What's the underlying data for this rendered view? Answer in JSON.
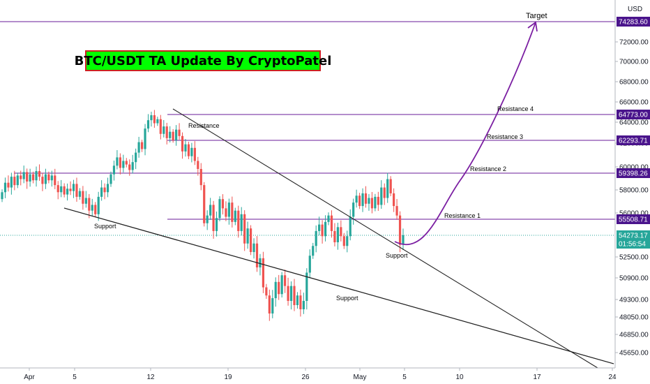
{
  "title": "BTC/USDT TA Update By CryptoPatel",
  "currency_label": "USD",
  "colors": {
    "up": "#26a69a",
    "down": "#ef5350",
    "level_line": "#6a1b9a",
    "level_tag": "#4a148c",
    "current_tag": "#26a69a",
    "trend_line": "#222222",
    "title_bg": "#00ff00",
    "title_border": "#cc2222"
  },
  "chart_data": {
    "type": "candlestick",
    "x_ticks": [
      "Apr",
      "5",
      "12",
      "19",
      "26",
      "May",
      "5",
      "10",
      "17",
      "24"
    ],
    "y_ticks": [
      "72000.00",
      "70000.00",
      "68000.00",
      "66000.00",
      "64000.00",
      "62000.00",
      "60000.00",
      "58000.00",
      "56000.00",
      "52500.00",
      "50900.00",
      "49300.00",
      "48050.00",
      "46850.00",
      "45650.00"
    ],
    "levels": [
      {
        "name": "Target",
        "value": 74283.6,
        "label": "74283.60"
      },
      {
        "name": "Resistance 4",
        "value": 64773.0,
        "label": "64773.00"
      },
      {
        "name": "Resistance 3",
        "value": 62293.71,
        "label": "62293.71"
      },
      {
        "name": "Resistance 2",
        "value": 59398.26,
        "label": "59398.26"
      },
      {
        "name": "Resistance 1",
        "value": 55508.71,
        "label": "55508.71"
      }
    ],
    "current_price": {
      "value": 54273.17,
      "label": "54273.17",
      "countdown": "01:56:54"
    },
    "annotations": {
      "target": "Target",
      "resistance": "Resistance",
      "support_left": "Support",
      "support_mid": "Support",
      "support_right": "Support",
      "resistance_1": "Resistance 1",
      "resistance_2": "Resistance 2",
      "resistance_3": "Resistance 3",
      "resistance_4": "Resistance 4"
    },
    "candles_note": "approximate daily-scale candles, Apr to early May",
    "closes": [
      57800,
      58600,
      58200,
      59100,
      58400,
      59200,
      58900,
      59500,
      58700,
      59300,
      58800,
      59600,
      59100,
      58500,
      59300,
      58800,
      59200,
      58400,
      57800,
      58300,
      57600,
      58100,
      57900,
      58500,
      57400,
      57900,
      56800,
      57300,
      56200,
      56700,
      55900,
      57400,
      58200,
      57800,
      58500,
      59300,
      60100,
      60800,
      59900,
      60500,
      60200,
      59700,
      60400,
      61200,
      62100,
      61500,
      63400,
      64200,
      64700,
      63900,
      64300,
      62900,
      63600,
      62500,
      63100,
      62300,
      63300,
      62700,
      61300,
      61900,
      60900,
      61600,
      60500,
      59800,
      58400,
      55200,
      55800,
      56700,
      54600,
      55600,
      57200,
      56400,
      55700,
      56900,
      55300,
      56200,
      54600,
      55900,
      53600,
      54800,
      52900,
      53600,
      51700,
      52400,
      50200,
      49600,
      48300,
      49400,
      50600,
      49700,
      51100,
      50300,
      49200,
      50300,
      48900,
      49600,
      48600,
      49200,
      51300,
      52600,
      53400,
      54600,
      55100,
      54200,
      55300,
      55800,
      54600,
      53700,
      54900,
      54200,
      53400,
      54200,
      55700,
      56900,
      57500,
      56600,
      57700,
      56800,
      57300,
      56400,
      57400,
      56700,
      58200,
      57300,
      58900,
      57700,
      56600,
      55800,
      53500,
      54273
    ]
  }
}
